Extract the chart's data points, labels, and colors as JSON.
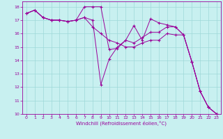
{
  "xlabel": "Windchill (Refroidissement éolien,°C)",
  "background_color": "#c8f0f0",
  "line_color": "#990099",
  "grid_color": "#9dd8d8",
  "xlim": [
    -0.5,
    23.5
  ],
  "ylim": [
    10,
    18.4
  ],
  "xticks": [
    0,
    1,
    2,
    3,
    4,
    5,
    6,
    7,
    8,
    9,
    10,
    11,
    12,
    13,
    14,
    15,
    16,
    17,
    18,
    19,
    20,
    21,
    22,
    23
  ],
  "yticks": [
    10,
    11,
    12,
    13,
    14,
    15,
    16,
    17,
    18
  ],
  "series": [
    {
      "x": [
        0,
        1,
        2,
        3,
        4,
        5,
        6,
        7,
        8,
        9,
        10,
        11,
        12,
        13,
        14,
        15,
        16,
        17,
        18,
        19,
        20,
        21,
        22,
        23
      ],
      "y": [
        17.5,
        17.75,
        17.2,
        17.0,
        17.0,
        16.9,
        17.0,
        18.0,
        18.0,
        18.0,
        14.8,
        14.9,
        15.5,
        16.6,
        15.5,
        17.1,
        16.8,
        16.65,
        16.5,
        15.9,
        13.9,
        11.7,
        10.5,
        10.0
      ]
    },
    {
      "x": [
        0,
        1,
        2,
        3,
        4,
        5,
        6,
        7,
        8,
        9,
        10,
        11,
        12,
        13,
        14,
        15,
        16,
        17,
        18,
        19,
        20,
        21,
        22,
        23
      ],
      "y": [
        17.5,
        17.75,
        17.2,
        17.0,
        17.0,
        16.9,
        17.0,
        17.2,
        17.0,
        12.2,
        14.1,
        15.0,
        15.5,
        15.3,
        15.7,
        16.1,
        16.1,
        16.5,
        16.5,
        15.9,
        13.9,
        11.7,
        10.5,
        10.0
      ]
    },
    {
      "x": [
        0,
        1,
        2,
        3,
        4,
        5,
        6,
        7,
        8,
        9,
        10,
        11,
        12,
        13,
        14,
        15,
        16,
        17,
        18,
        19,
        20,
        21,
        22,
        23
      ],
      "y": [
        17.5,
        17.75,
        17.2,
        17.0,
        17.0,
        16.9,
        17.0,
        17.2,
        16.5,
        16.0,
        15.5,
        15.3,
        15.0,
        15.0,
        15.3,
        15.5,
        15.5,
        16.0,
        15.9,
        15.9,
        13.9,
        11.7,
        10.5,
        10.0
      ]
    }
  ]
}
